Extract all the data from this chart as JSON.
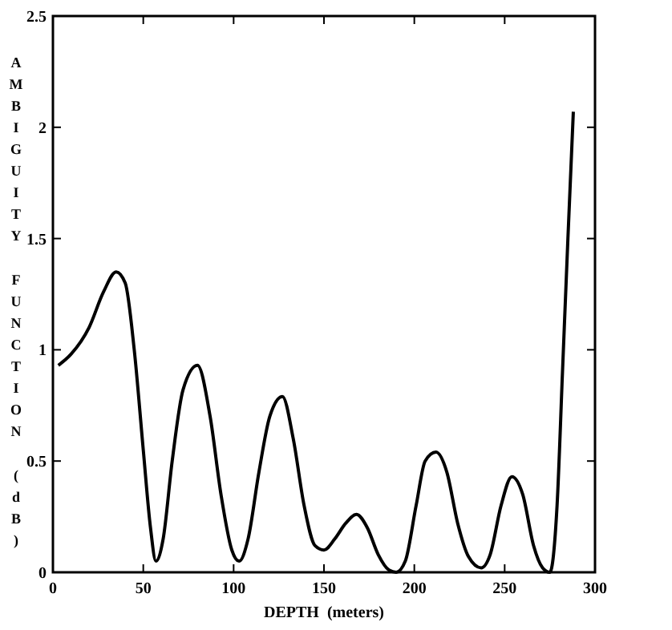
{
  "chart_data": {
    "type": "line",
    "xlabel": "DEPTH  (meters)",
    "ylabel": "AMBIGUITY FUNCTION (dB)",
    "x": [
      3,
      10,
      20,
      28,
      35,
      40,
      45,
      50,
      54,
      57,
      61,
      66,
      72,
      80,
      87,
      93,
      99,
      103,
      108,
      114,
      120,
      127,
      133,
      139,
      145,
      150,
      156,
      162,
      168,
      174,
      180,
      186,
      190,
      195,
      201,
      206,
      212,
      218,
      224,
      230,
      237,
      242,
      248,
      254,
      260,
      266,
      271,
      275,
      279,
      282,
      285,
      288
    ],
    "series": [
      {
        "color": "#000000",
        "values": [
          0.93,
          0.98,
          1.1,
          1.26,
          1.35,
          1.3,
          1.0,
          0.55,
          0.2,
          0.05,
          0.15,
          0.5,
          0.82,
          0.93,
          0.7,
          0.35,
          0.1,
          0.05,
          0.15,
          0.45,
          0.7,
          0.79,
          0.6,
          0.3,
          0.12,
          0.1,
          0.15,
          0.22,
          0.26,
          0.2,
          0.08,
          0.01,
          0,
          0.05,
          0.3,
          0.5,
          0.54,
          0.45,
          0.22,
          0.07,
          0.02,
          0.08,
          0.3,
          0.43,
          0.35,
          0.12,
          0.02,
          0.0,
          0.3,
          0.9,
          1.5,
          2.07
        ]
      }
    ],
    "xlim": [
      0,
      300
    ],
    "xticks": [
      0,
      50,
      100,
      150,
      200,
      250,
      300
    ],
    "ylim": [
      0,
      2.5
    ],
    "yticks": [
      0,
      0.5,
      1,
      1.5,
      2,
      2.5
    ],
    "grid": false,
    "marker": "none",
    "line_style": "solid"
  }
}
